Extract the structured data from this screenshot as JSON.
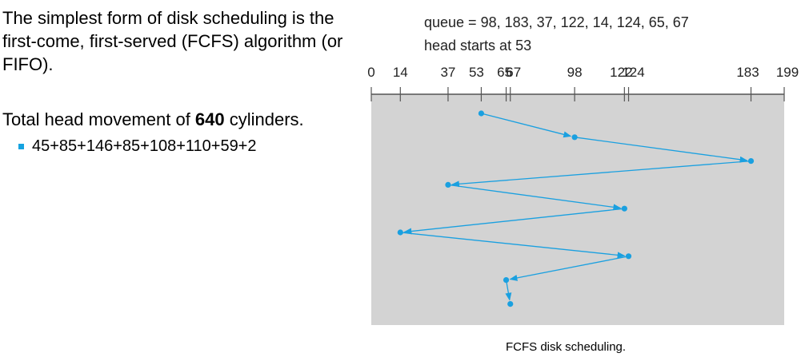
{
  "slide": {
    "intro": "The simplest form of disk scheduling is the first-come, first-served (FCFS) algorithm (or FIFO).",
    "total_prefix": "Total head movement of ",
    "total_value": "640",
    "total_suffix": " cylinders.",
    "bullet": "45+85+146+85+108+110+59+2"
  },
  "diagram": {
    "queue_label": "queue = 98, 183, 37, 122, 14, 124, 65, 67",
    "head_label": "head starts at 53",
    "caption": "FCFS disk scheduling.",
    "axis_min": 0,
    "axis_max": 199,
    "ticks": [
      0,
      14,
      37,
      53,
      65,
      67,
      98,
      122,
      124,
      183,
      199
    ],
    "tick_labels": [
      "0",
      "14",
      "37",
      "53",
      "65",
      "67",
      "98",
      "122",
      "124",
      "183",
      "199"
    ],
    "sequence": [
      53,
      98,
      183,
      37,
      122,
      14,
      124,
      65,
      67
    ],
    "colors": {
      "panel": "#d3d3d3",
      "path": "#1aa0e0",
      "axis": "#555555"
    }
  }
}
